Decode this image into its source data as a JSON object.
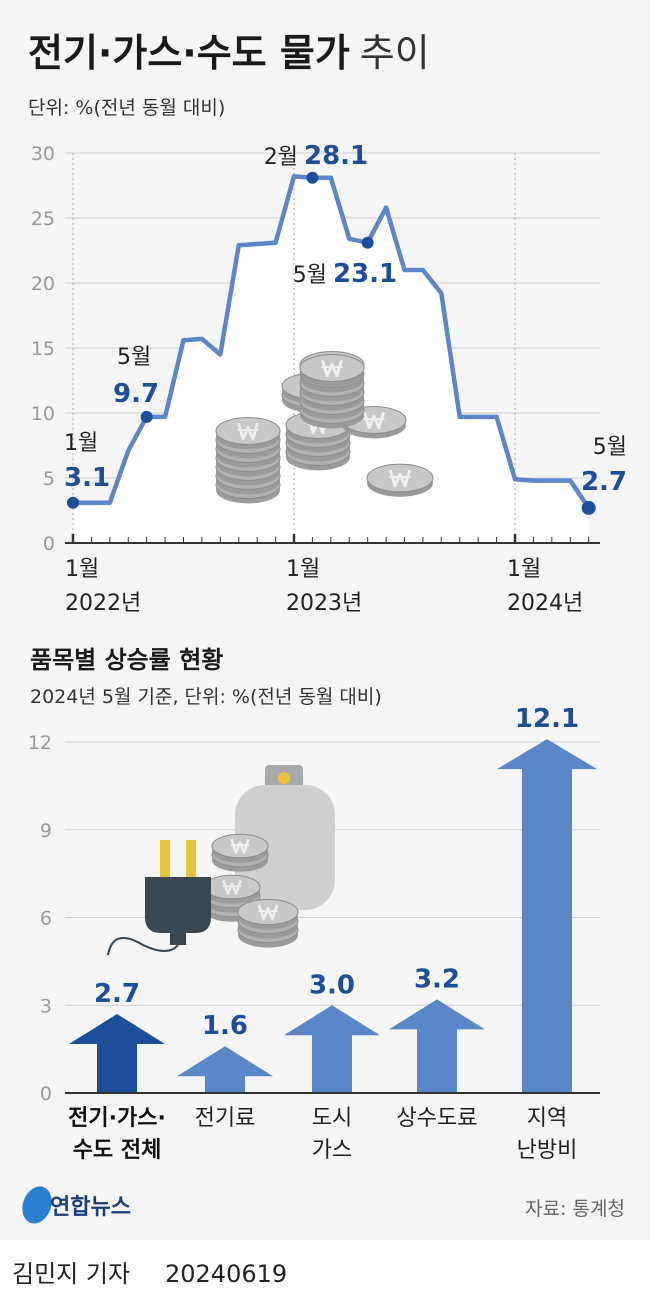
{
  "header": {
    "title_bold": "전기·가스·수도 물가",
    "title_light": "추이",
    "unit": "단위: %(전년 동월 대비)"
  },
  "colors": {
    "line": "#5b86c8",
    "point": "#1b4f9c",
    "value_text": "#1b4f9c",
    "bar_total": "#1b4f9c",
    "bar": "#5b86c8",
    "background": "#f5f5f5"
  },
  "chart_data": [
    {
      "type": "line",
      "ylim": [
        0,
        30
      ],
      "yticks": [
        "0",
        "5",
        "10",
        "15",
        "20",
        "25",
        "30"
      ],
      "grid": true,
      "x_start": "2022-01",
      "x_end": "2024-05",
      "xtick_labels": [
        {
          "month": "1월",
          "year": "2022년"
        },
        {
          "month": "1월",
          "year": "2023년"
        },
        {
          "month": "1월",
          "year": "2024년"
        }
      ],
      "values": [
        3.1,
        3.1,
        3.1,
        7.1,
        9.7,
        9.7,
        15.6,
        15.7,
        14.5,
        22.9,
        23.0,
        23.1,
        28.2,
        28.1,
        28.1,
        23.4,
        23.1,
        25.8,
        21.0,
        21.0,
        19.2,
        9.7,
        9.7,
        9.7,
        4.9,
        4.8,
        4.8,
        4.8,
        2.7
      ],
      "annotations": [
        {
          "month": "1월",
          "value": "3.1"
        },
        {
          "month": "5월",
          "value": "9.7"
        },
        {
          "month": "2월",
          "value": "28.1"
        },
        {
          "month": "5월",
          "value": "23.1"
        },
        {
          "month": "5월",
          "value": "2.7"
        }
      ]
    },
    {
      "type": "bar",
      "title": "품목별 상승률 현황",
      "subtitle": "2024년 5월 기준, 단위: %(전년 동월 대비)",
      "ylim": [
        0,
        12
      ],
      "yticks": [
        "0",
        "3",
        "6",
        "9",
        "12"
      ],
      "grid": true,
      "categories": [
        [
          "전기·가스·",
          "수도 전체"
        ],
        [
          "전기료"
        ],
        [
          "도시",
          "가스"
        ],
        [
          "상수도료"
        ],
        [
          "지역",
          "난방비"
        ]
      ],
      "values": [
        2.7,
        1.6,
        3.0,
        3.2,
        12.1
      ],
      "value_labels": [
        "2.7",
        "1.6",
        "3.0",
        "3.2",
        "12.1"
      ]
    }
  ],
  "footer": {
    "logo": "연합뉴스",
    "source": "자료: 통계청",
    "byline": "김민지 기자",
    "date": "20240619"
  }
}
